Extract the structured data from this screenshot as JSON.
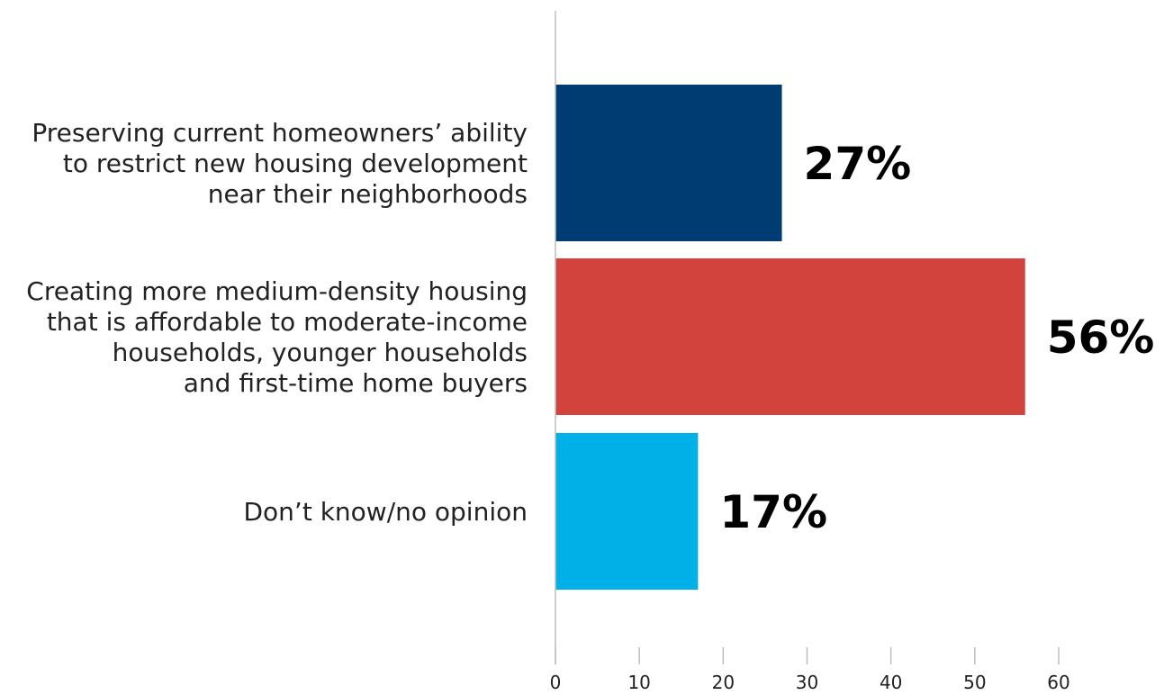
{
  "chart_data": {
    "type": "bar",
    "orientation": "horizontal",
    "categories": [
      [
        "Preserving current homeowners’ ability",
        "to restrict new housing development",
        "near their neighborhoods"
      ],
      [
        "Creating more medium-density housing",
        "that is affordable to moderate-income",
        "households, younger households",
        "and first-time home buyers"
      ],
      [
        "Don’t know/no opinion"
      ]
    ],
    "values": [
      27,
      56,
      17
    ],
    "data_labels": [
      "27%",
      "56%",
      "17%"
    ],
    "colors": [
      "#003b71",
      "#d3433d",
      "#00b0e6"
    ],
    "xlim": [
      0,
      60
    ],
    "xticks": [
      0,
      10,
      20,
      30,
      40,
      50,
      60
    ],
    "grid": false,
    "legend": "none"
  }
}
